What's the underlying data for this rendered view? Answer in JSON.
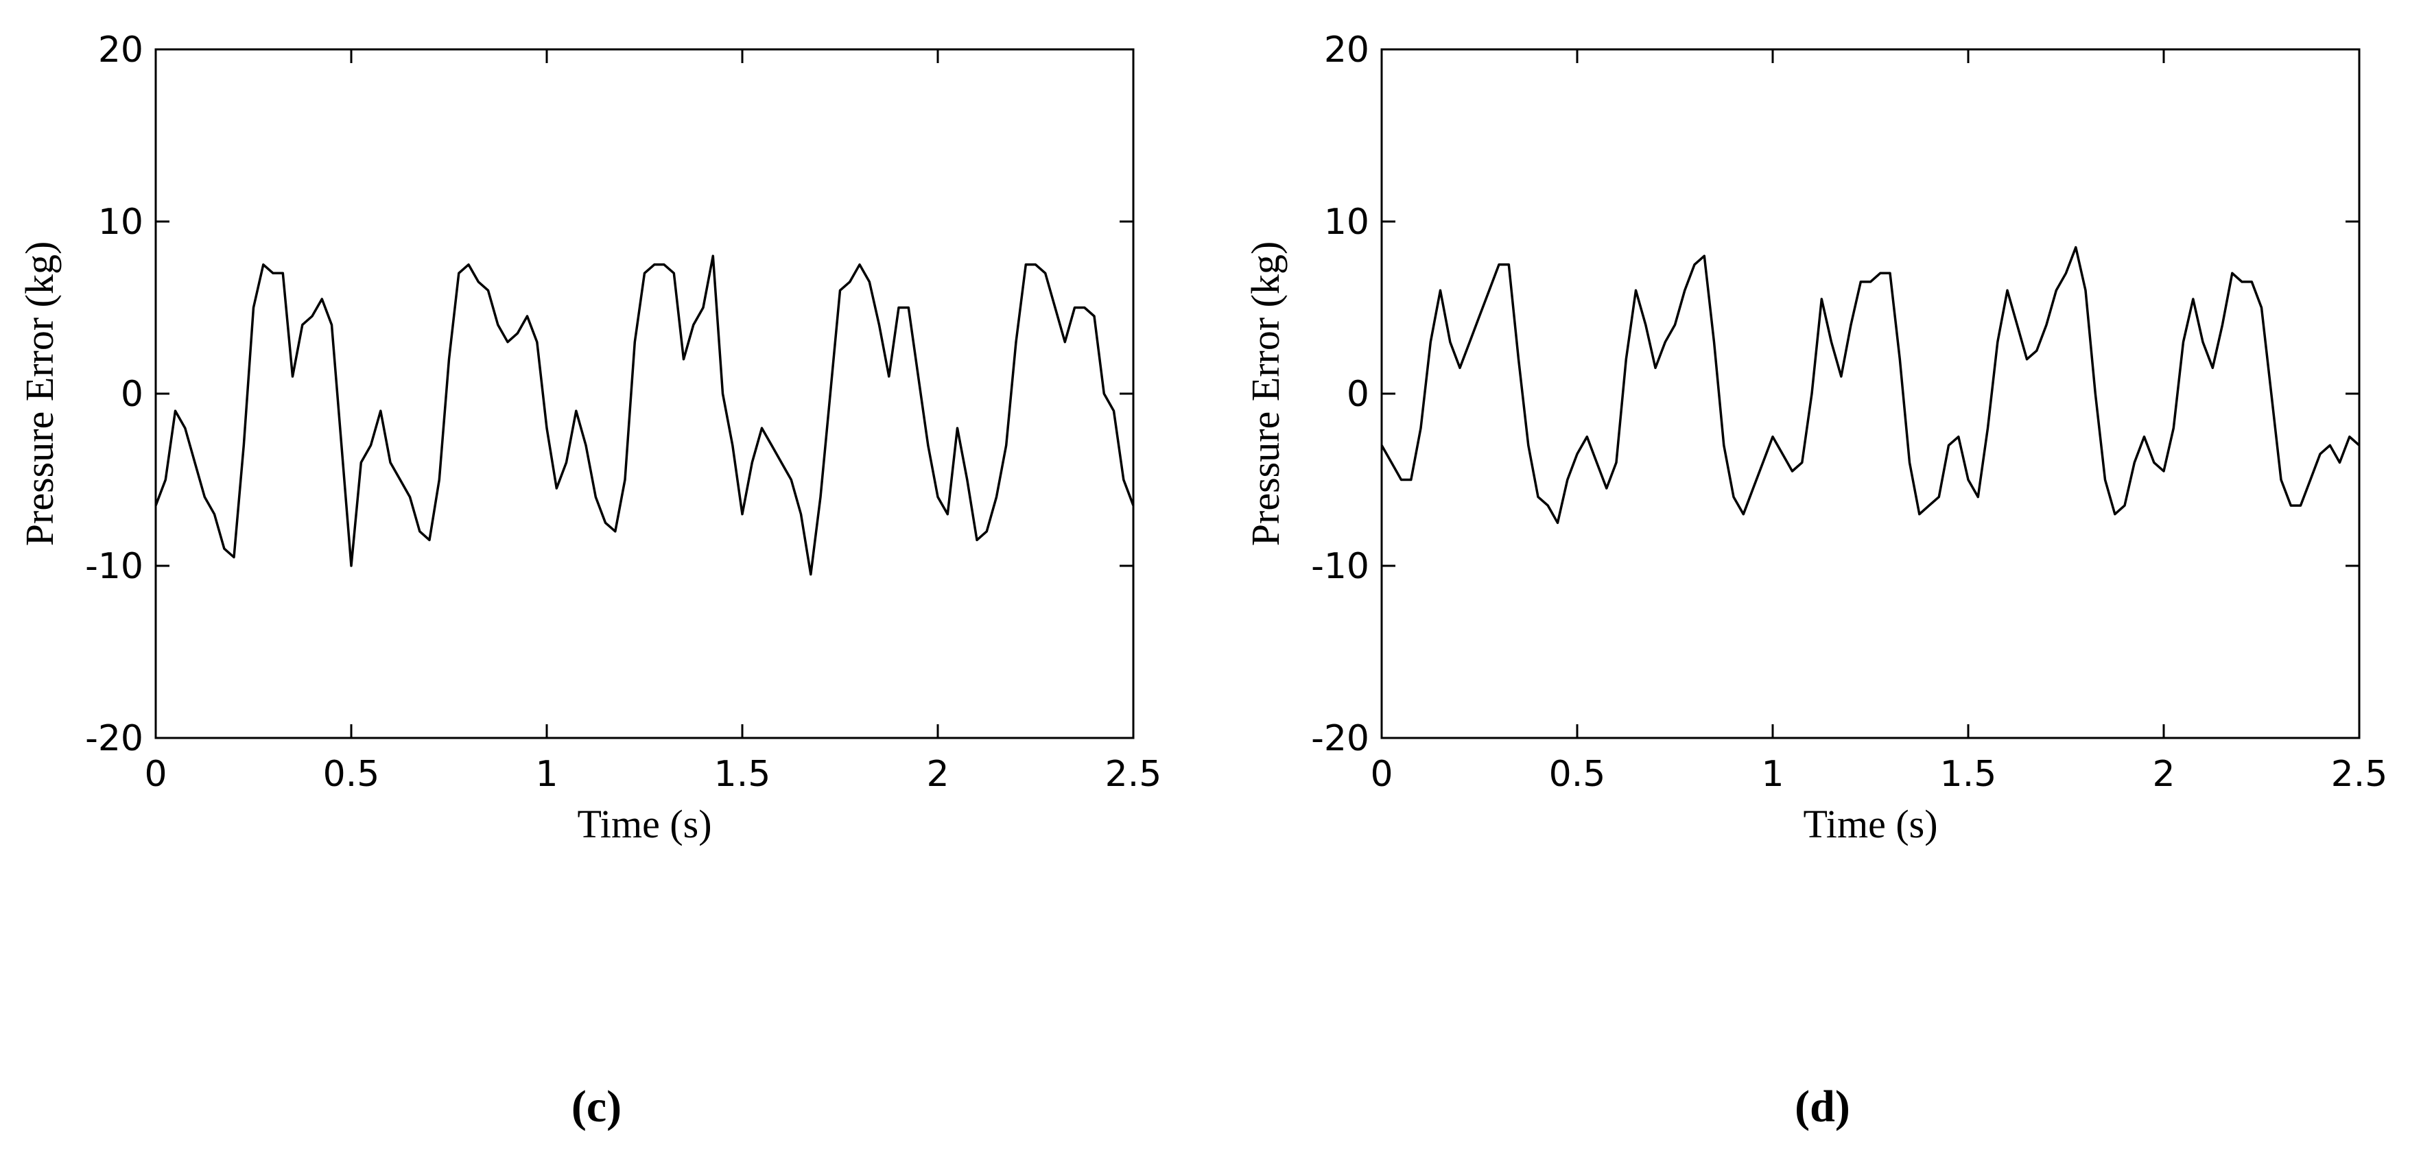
{
  "chart_data": [
    {
      "type": "line",
      "caption": "(c)",
      "xlabel": "Time (s)",
      "ylabel": "Pressure Error (kg)",
      "color": "#000000",
      "xlim": [
        0,
        2.5
      ],
      "xticks": [
        0,
        0.5,
        1,
        1.5,
        2,
        2.5
      ],
      "ylim": [
        -20,
        20
      ],
      "yticks": [
        -20,
        -10,
        0,
        10,
        20
      ],
      "x": [
        0,
        0.025,
        0.05,
        0.075,
        0.1,
        0.125,
        0.15,
        0.175,
        0.2,
        0.225,
        0.25,
        0.275,
        0.3,
        0.325,
        0.35,
        0.375,
        0.4,
        0.425,
        0.45,
        0.475,
        0.5,
        0.525,
        0.55,
        0.575,
        0.6,
        0.625,
        0.65,
        0.675,
        0.7,
        0.725,
        0.75,
        0.775,
        0.8,
        0.825,
        0.85,
        0.875,
        0.9,
        0.925,
        0.95,
        0.975,
        1,
        1.025,
        1.05,
        1.075,
        1.1,
        1.125,
        1.15,
        1.175,
        1.2,
        1.225,
        1.25,
        1.275,
        1.3,
        1.325,
        1.35,
        1.375,
        1.4,
        1.425,
        1.45,
        1.475,
        1.5,
        1.525,
        1.55,
        1.575,
        1.6,
        1.625,
        1.65,
        1.675,
        1.7,
        1.725,
        1.75,
        1.775,
        1.8,
        1.825,
        1.85,
        1.875,
        1.9,
        1.925,
        1.95,
        1.975,
        2,
        2.025,
        2.05,
        2.075,
        2.1,
        2.125,
        2.15,
        2.175,
        2.2,
        2.225,
        2.25,
        2.275,
        2.3,
        2.325,
        2.35,
        2.375,
        2.4,
        2.425,
        2.45,
        2.475,
        2.5
      ],
      "values": [
        -6.5,
        -5,
        -1,
        -2,
        -4,
        -6,
        -7,
        -9,
        -9.5,
        -3,
        5,
        7.5,
        7,
        7,
        1,
        4,
        4.5,
        5.5,
        4,
        -3,
        -10,
        -4,
        -3,
        -1,
        -4,
        -5,
        -6,
        -8,
        -8.5,
        -5,
        2,
        7,
        7.5,
        6.5,
        6,
        4,
        3,
        3.5,
        4.5,
        3,
        -2,
        -5.5,
        -4,
        -1,
        -3,
        -6,
        -7.5,
        -8,
        -5,
        3,
        7,
        7.5,
        7.5,
        7,
        2,
        4,
        5,
        8,
        0,
        -3,
        -7,
        -4,
        -2,
        -3,
        -4,
        -5,
        -7,
        -10.5,
        -6,
        0,
        6,
        6.5,
        7.5,
        6.5,
        4,
        1,
        5,
        5,
        1,
        -3,
        -6,
        -7,
        -2,
        -5,
        -8.5,
        -8,
        -6,
        -3,
        3,
        7.5,
        7.5,
        7,
        5,
        3,
        5,
        5,
        4.5,
        0,
        -1,
        -5,
        -6.5
      ]
    },
    {
      "type": "line",
      "caption": "(d)",
      "xlabel": "Time (s)",
      "ylabel": "Pressure Error (kg)",
      "color": "#000000",
      "xlim": [
        0,
        2.5
      ],
      "xticks": [
        0,
        0.5,
        1,
        1.5,
        2,
        2.5
      ],
      "ylim": [
        -20,
        20
      ],
      "yticks": [
        -20,
        -10,
        0,
        10,
        20
      ],
      "x": [
        0,
        0.025,
        0.05,
        0.075,
        0.1,
        0.125,
        0.15,
        0.175,
        0.2,
        0.225,
        0.25,
        0.275,
        0.3,
        0.325,
        0.35,
        0.375,
        0.4,
        0.425,
        0.45,
        0.475,
        0.5,
        0.525,
        0.55,
        0.575,
        0.6,
        0.625,
        0.65,
        0.675,
        0.7,
        0.725,
        0.75,
        0.775,
        0.8,
        0.825,
        0.85,
        0.875,
        0.9,
        0.925,
        0.95,
        0.975,
        1,
        1.025,
        1.05,
        1.075,
        1.1,
        1.125,
        1.15,
        1.175,
        1.2,
        1.225,
        1.25,
        1.275,
        1.3,
        1.325,
        1.35,
        1.375,
        1.4,
        1.425,
        1.45,
        1.475,
        1.5,
        1.525,
        1.55,
        1.575,
        1.6,
        1.625,
        1.65,
        1.675,
        1.7,
        1.725,
        1.75,
        1.775,
        1.8,
        1.825,
        1.85,
        1.875,
        1.9,
        1.925,
        1.95,
        1.975,
        2,
        2.025,
        2.05,
        2.075,
        2.1,
        2.125,
        2.15,
        2.175,
        2.2,
        2.225,
        2.25,
        2.275,
        2.3,
        2.325,
        2.35,
        2.375,
        2.4,
        2.425,
        2.45,
        2.475,
        2.5
      ],
      "values": [
        -3,
        -4,
        -5,
        -5,
        -2,
        3,
        6,
        3,
        1.5,
        3,
        4.5,
        6,
        7.5,
        7.5,
        2,
        -3,
        -6,
        -6.5,
        -7.5,
        -5,
        -3.5,
        -2.5,
        -4,
        -5.5,
        -4,
        2,
        6,
        4,
        1.5,
        3,
        4,
        6,
        7.5,
        8,
        3,
        -3,
        -6,
        -7,
        -5.5,
        -4,
        -2.5,
        -3.5,
        -4.5,
        -4,
        0,
        5.5,
        3,
        1,
        4,
        6.5,
        6.5,
        7,
        7,
        2,
        -4,
        -7,
        -6.5,
        -6,
        -3,
        -2.5,
        -5,
        -6,
        -2,
        3,
        6,
        4,
        2,
        2.5,
        4,
        6,
        7,
        8.5,
        6,
        0,
        -5,
        -7,
        -6.5,
        -4,
        -2.5,
        -4,
        -4.5,
        -2,
        3,
        5.5,
        3,
        1.5,
        4,
        7,
        6.5,
        6.5,
        5,
        0,
        -5,
        -6.5,
        -6.5,
        -5,
        -3.5,
        -3,
        -4,
        -2.5,
        -3
      ]
    }
  ]
}
